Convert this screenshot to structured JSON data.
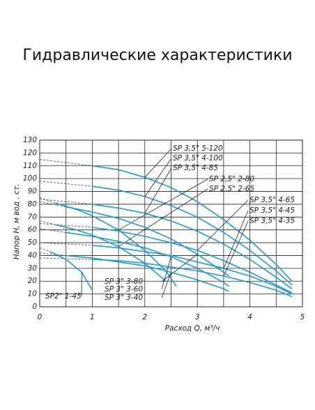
{
  "chart_data": {
    "type": "line",
    "title": "Гидравлические характеристики",
    "y_label": "Напор  H, м вод . ст.",
    "x_label": "Расход  Q, м³/ч",
    "xlim": [
      0,
      5
    ],
    "xticks": [
      0,
      1,
      2,
      3,
      4,
      5
    ],
    "ylim": [
      0,
      130
    ],
    "yticks": [
      0,
      10,
      20,
      30,
      40,
      50,
      60,
      70,
      80,
      90,
      100,
      110,
      120,
      130
    ],
    "grid": true,
    "color": "#1a9bd7",
    "series": [
      {
        "name": "SP 3,5\" 5-120",
        "x_dashed": [
          0,
          1
        ],
        "values_dashed": [
          115,
          110
        ],
        "x": [
          1,
          1.5,
          2,
          2.5,
          3,
          3.5,
          4,
          4.5,
          4.8
        ],
        "values": [
          110,
          107,
          101,
          93,
          82,
          68,
          52,
          33,
          20
        ]
      },
      {
        "name": "SP 3,5\" 4-100",
        "x_dashed": [
          0,
          1
        ],
        "values_dashed": [
          98,
          94
        ],
        "x": [
          1,
          1.5,
          2,
          2.5,
          3,
          3.5,
          4,
          4.5,
          4.8
        ],
        "values": [
          94,
          91,
          86,
          79,
          70,
          58,
          44,
          28,
          17
        ]
      },
      {
        "name": "SP 3,5\" 4-85",
        "x_dashed": [
          0,
          1
        ],
        "values_dashed": [
          84,
          80
        ],
        "x": [
          1,
          1.5,
          2,
          2.5,
          3,
          3.5,
          4,
          4.5,
          4.8
        ],
        "values": [
          80,
          77,
          73,
          67,
          59,
          49,
          37,
          23,
          14
        ]
      },
      {
        "name": "SP 2,5\" 2-80",
        "x_dashed": [
          0,
          0.3
        ],
        "values_dashed": [
          85,
          81
        ],
        "x": [
          0.3,
          0.7,
          1,
          1.5,
          2,
          2.4,
          2.6
        ],
        "values": [
          81,
          76,
          71,
          60,
          44,
          28,
          16
        ]
      },
      {
        "name": "SP 2,5\" 2-65",
        "x_dashed": [
          0,
          0.3
        ],
        "values_dashed": [
          67,
          64
        ],
        "x": [
          0.3,
          0.7,
          1,
          1.5,
          2,
          2.4
        ],
        "values": [
          64,
          60,
          56,
          47,
          34,
          20
        ]
      },
      {
        "name": "SP 3,5\" 4-65",
        "x_dashed": [
          0,
          1
        ],
        "values_dashed": [
          65,
          62
        ],
        "x": [
          1,
          1.5,
          2,
          2.5,
          3,
          3.5,
          4,
          4.5,
          4.8
        ],
        "values": [
          62,
          59,
          55,
          50,
          44,
          36,
          27,
          17,
          11
        ]
      },
      {
        "name": "SP 3,5\" 4-45",
        "x_dashed": [
          0,
          1
        ],
        "values_dashed": [
          50,
          48
        ],
        "x": [
          1,
          1.5,
          2,
          2.5,
          3,
          3.5,
          4,
          4.5,
          4.8
        ],
        "values": [
          48,
          46,
          43,
          40,
          35,
          30,
          24,
          16,
          10
        ]
      },
      {
        "name": "SP 3,5\" 4-35",
        "x_dashed": [
          0,
          1
        ],
        "values_dashed": [
          38,
          37
        ],
        "x": [
          1,
          1.5,
          2,
          2.5,
          3,
          3.5,
          4,
          4.5,
          4.8
        ],
        "values": [
          37,
          36,
          34,
          31,
          28,
          24,
          19,
          13,
          8
        ]
      },
      {
        "name": "SP 3\" 3-80",
        "x_dashed": [
          0,
          0.5
        ],
        "values_dashed": [
          82,
          78
        ],
        "x": [
          0.5,
          1,
          1.5,
          2,
          2.5,
          3,
          3.5,
          3.6
        ],
        "values": [
          78,
          74,
          69,
          62,
          53,
          41,
          27,
          24
        ]
      },
      {
        "name": "SP 3\" 3-60",
        "x_dashed": [
          0,
          0.5
        ],
        "values_dashed": [
          61,
          58
        ],
        "x": [
          0.5,
          1,
          1.5,
          2,
          2.5,
          3,
          3.5,
          3.6
        ],
        "values": [
          58,
          55,
          51,
          46,
          39,
          30,
          19,
          16
        ]
      },
      {
        "name": "SP 3\" 3-40",
        "x_dashed": [
          0,
          0.5
        ],
        "values_dashed": [
          42,
          40
        ],
        "x": [
          0.5,
          1,
          1.5,
          2,
          2.5,
          3,
          3.5,
          3.6
        ],
        "values": [
          40,
          38,
          35,
          32,
          27,
          21,
          14,
          12
        ]
      },
      {
        "name": "SP2\" 1-45",
        "x_dashed": [
          0,
          0.2
        ],
        "values_dashed": [
          46,
          43
        ],
        "x": [
          0.2,
          0.5,
          0.8,
          1
        ],
        "values": [
          43,
          37,
          27,
          13
        ]
      }
    ]
  }
}
